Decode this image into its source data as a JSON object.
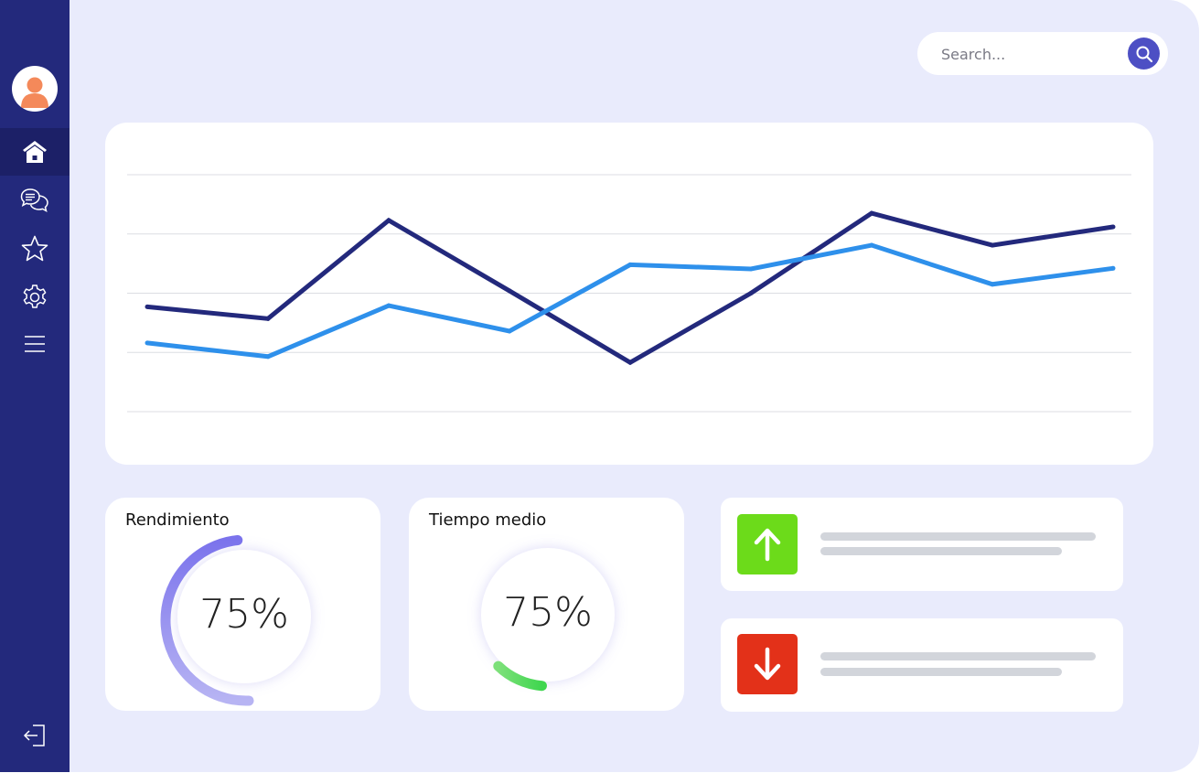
{
  "search": {
    "placeholder": "Search..."
  },
  "sidebar": {
    "items": [
      {
        "name": "home",
        "icon": "home-icon",
        "active": true
      },
      {
        "name": "chat",
        "icon": "chat-bubbles-icon"
      },
      {
        "name": "favorites",
        "icon": "star-icon"
      },
      {
        "name": "settings",
        "icon": "gear-icon"
      },
      {
        "name": "menu",
        "icon": "menu-icon"
      }
    ],
    "bottom": {
      "icon": "logout-icon"
    }
  },
  "cards": {
    "rendimiento": {
      "title": "Rendimiento",
      "value": "75%",
      "progress": 0.5
    },
    "tiempo_medio": {
      "title": "Tiempo medio",
      "value": "75%",
      "progress": 0.12
    }
  },
  "trends": [
    {
      "direction": "up",
      "icon": "arrow-up-icon",
      "color": "#6cdb1a"
    },
    {
      "direction": "down",
      "icon": "arrow-down-icon",
      "color": "#e33119"
    }
  ],
  "colors": {
    "sidebar": "#23297c",
    "accent": "#4d4fc4",
    "series_dark": "#23297c",
    "series_light": "#2e90eb"
  },
  "chart_data": {
    "type": "line",
    "x": [
      1,
      2,
      3,
      4,
      5,
      6,
      7,
      8,
      9
    ],
    "ylim": [
      0,
      4
    ],
    "grid": true,
    "series": [
      {
        "values": [
          1.77,
          1.57,
          3.23,
          2.04,
          0.83,
          2.0,
          3.35,
          2.81,
          3.12
        ]
      },
      {
        "values": [
          1.16,
          0.93,
          1.79,
          1.36,
          2.48,
          2.41,
          2.81,
          2.15,
          2.42
        ]
      }
    ]
  }
}
